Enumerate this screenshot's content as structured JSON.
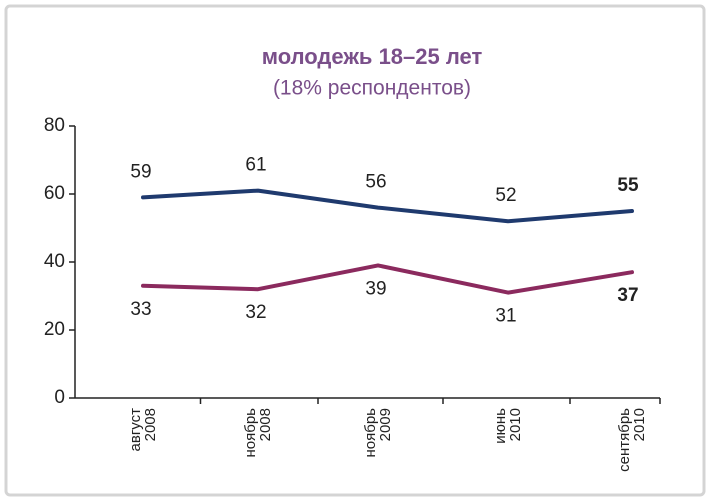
{
  "chart_data": {
    "type": "line",
    "title": "молодежь 18–25 лет",
    "subtitle": "(18% респондентов)",
    "categories": [
      [
        "август",
        "2008"
      ],
      [
        "ноябрь",
        "2008"
      ],
      [
        "ноябрь",
        "2009"
      ],
      [
        "июнь",
        "2010"
      ],
      [
        "сентябрь",
        "2010"
      ]
    ],
    "series": [
      {
        "color": "#1f3a6e",
        "values": [
          59,
          61,
          56,
          52,
          55
        ]
      },
      {
        "color": "#8b2a5e",
        "values": [
          33,
          32,
          39,
          31,
          37
        ]
      }
    ],
    "ylim": [
      0,
      80
    ],
    "yticks": [
      0,
      20,
      40,
      60,
      80
    ]
  }
}
